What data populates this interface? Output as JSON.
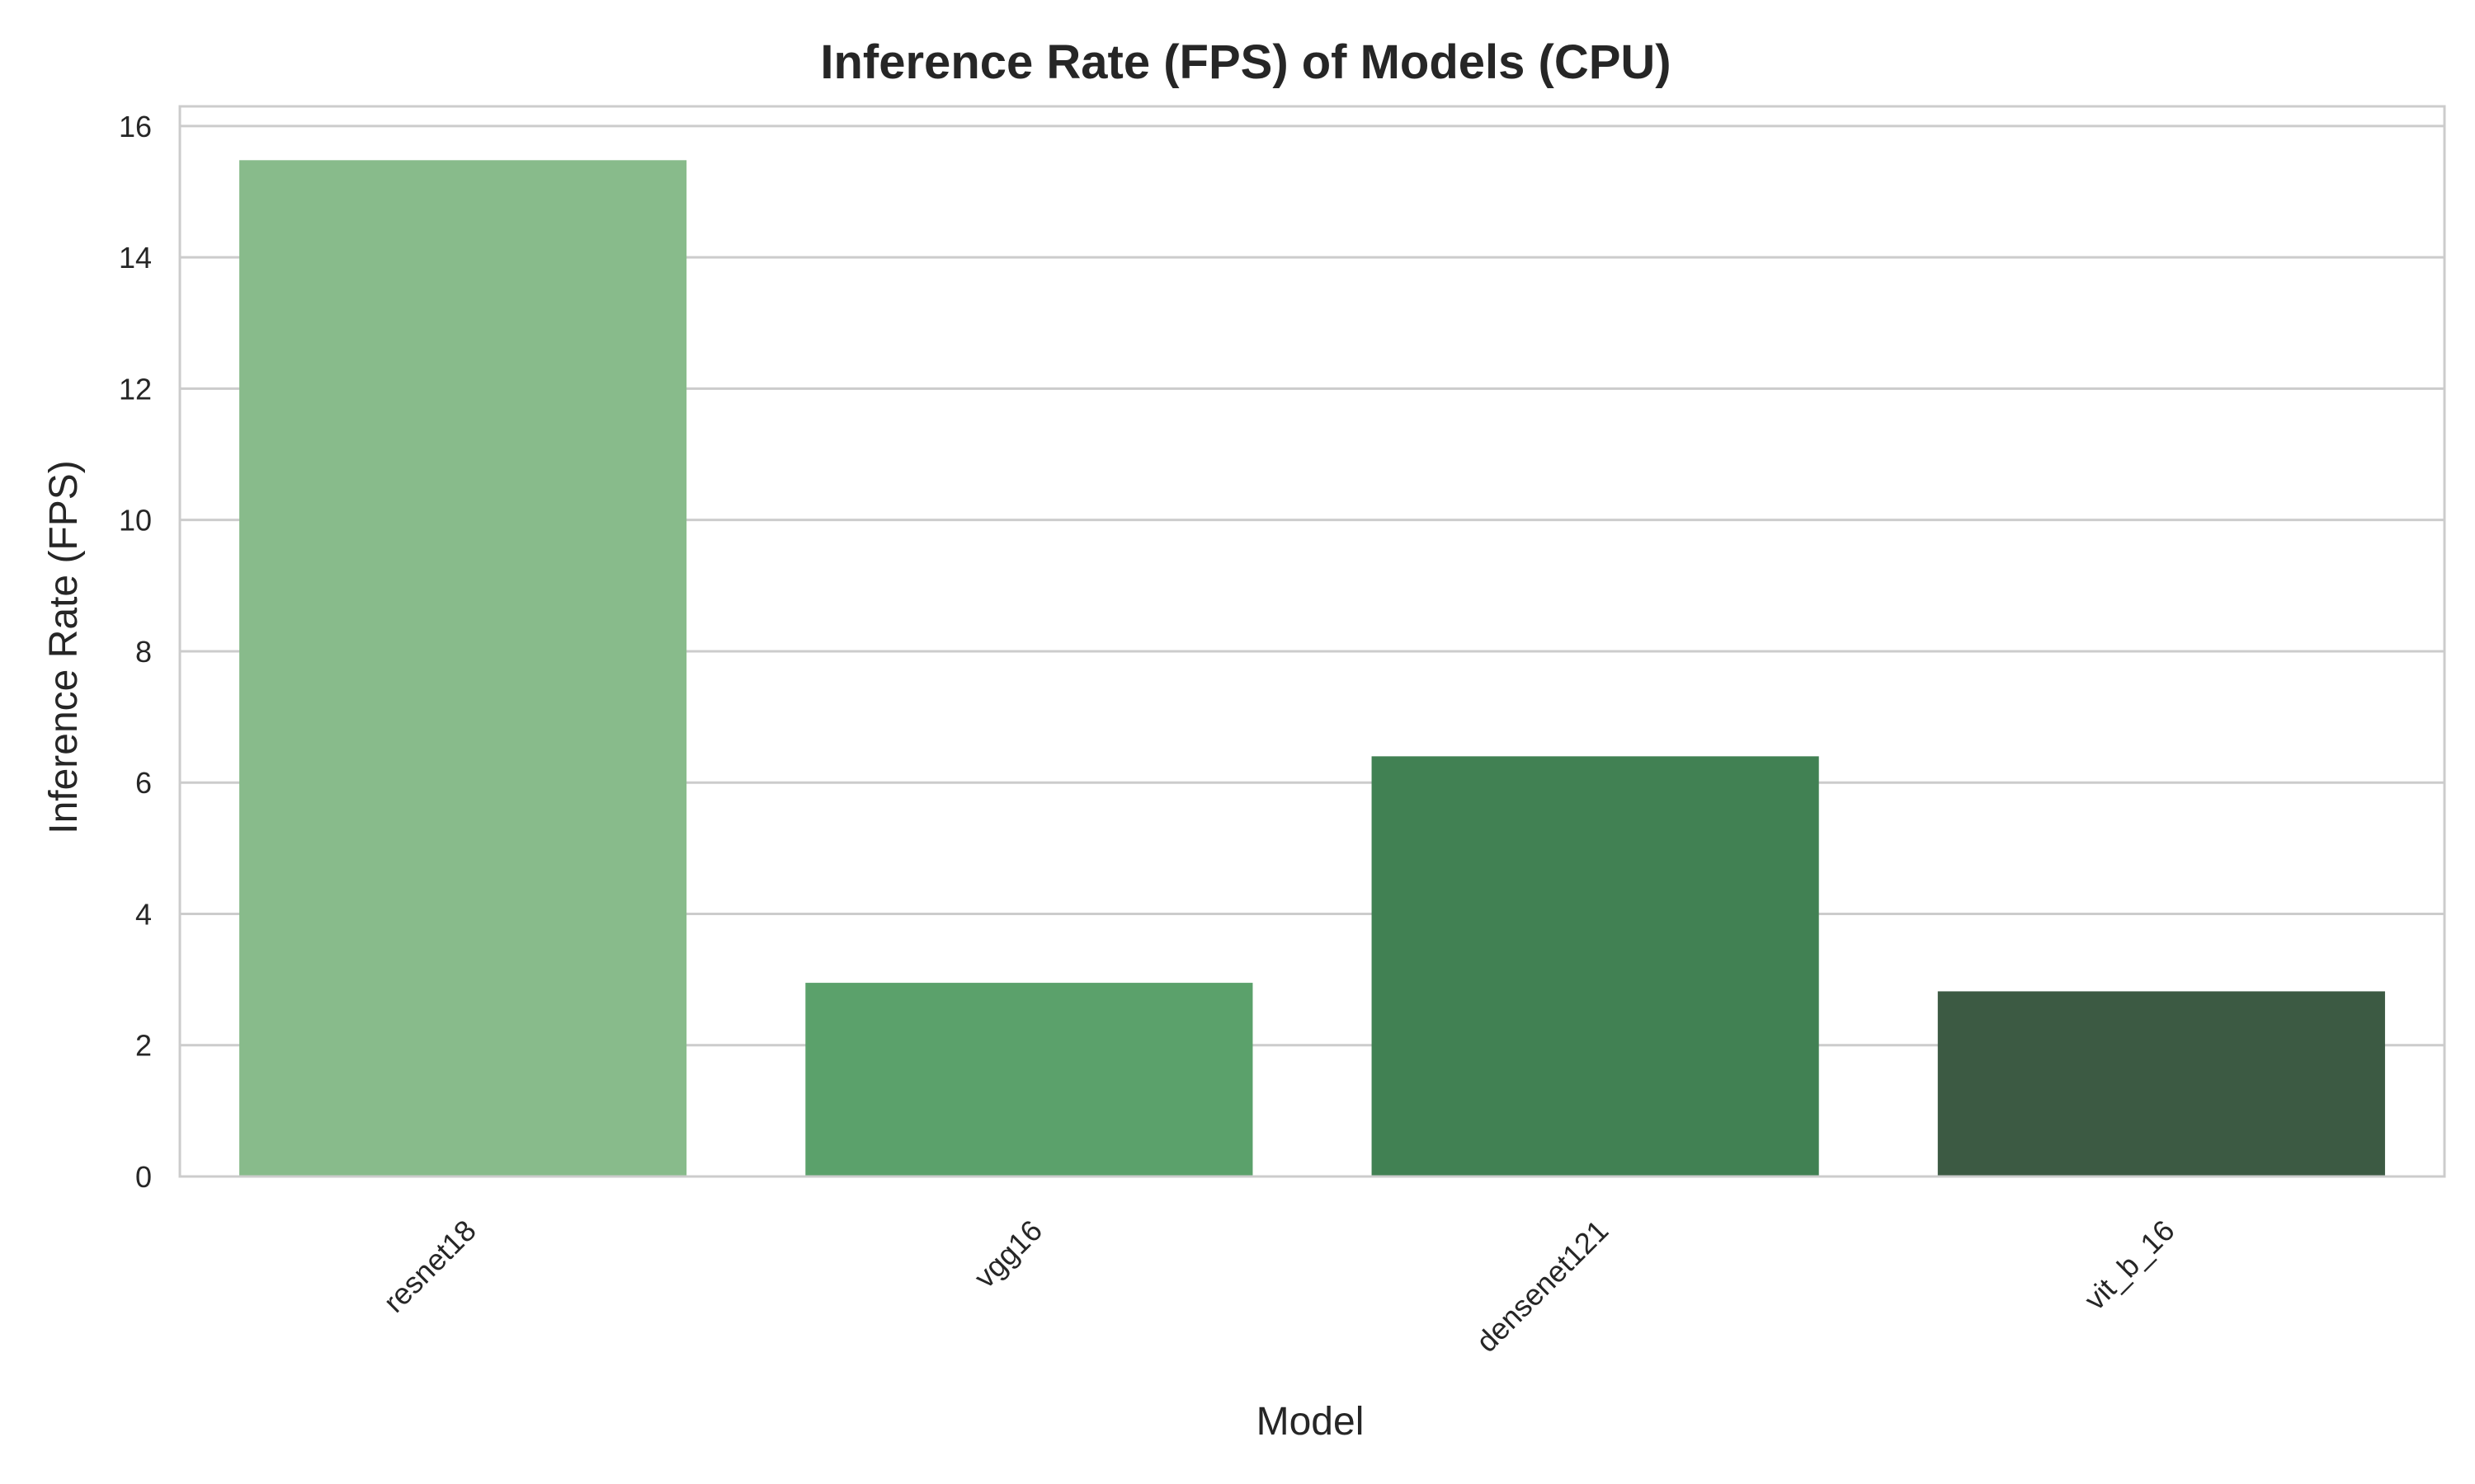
{
  "chart_data": {
    "type": "bar",
    "title": "Inference Rate (FPS) of Models (CPU)",
    "xlabel": "Model",
    "ylabel": "Inference Rate (FPS)",
    "categories": [
      "resnet18",
      "vgg16",
      "densenet121",
      "vit_b_16"
    ],
    "values": [
      15.48,
      2.95,
      6.4,
      2.82
    ],
    "colors": [
      "#88bb8b",
      "#5ba16b",
      "#418153",
      "#3c5a43"
    ],
    "ylim": [
      0,
      16.3
    ],
    "yticks": [
      0,
      2,
      4,
      6,
      8,
      10,
      12,
      14,
      16
    ],
    "ytick_labels": [
      "0",
      "2",
      "4",
      "6",
      "8",
      "10",
      "12",
      "14",
      "16"
    ],
    "grid": "horizontal",
    "legend": "none",
    "style": {
      "background": "#ffffff",
      "grid_color": "#cccccc",
      "spine_color": "#cccccc",
      "text_color": "#262626"
    }
  }
}
